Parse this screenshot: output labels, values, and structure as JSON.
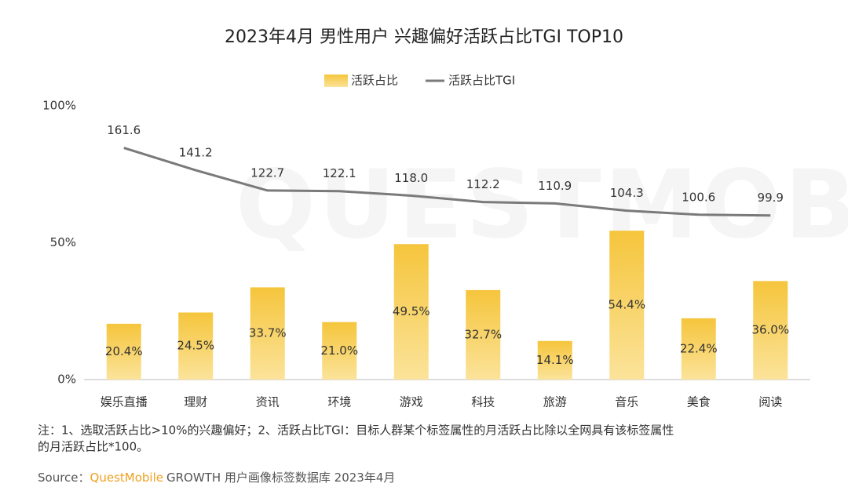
{
  "chart_data": {
    "type": "bar",
    "title": "2023年4月 男性用户 兴趣偏好活跃占比TGI TOP10",
    "watermark": "QUESTMOBILE",
    "categories": [
      "娱乐直播",
      "理财",
      "资讯",
      "环境",
      "游戏",
      "科技",
      "旅游",
      "音乐",
      "美食",
      "阅读"
    ],
    "series": [
      {
        "name": "活跃占比",
        "type": "bar",
        "color": "#f5c53c",
        "values": [
          20.4,
          24.5,
          33.7,
          21.0,
          49.5,
          32.7,
          14.1,
          54.4,
          22.4,
          36.0
        ],
        "value_labels": [
          "20.4%",
          "24.5%",
          "33.7%",
          "21.0%",
          "49.5%",
          "32.7%",
          "14.1%",
          "54.4%",
          "22.4%",
          "36.0%"
        ]
      },
      {
        "name": "活跃占比TGI",
        "type": "line",
        "axis": "y2",
        "color": "#7a7a7a",
        "values": [
          161.6,
          141.2,
          122.7,
          122.1,
          118.0,
          112.2,
          110.9,
          104.3,
          100.6,
          99.9
        ],
        "value_labels": [
          "161.6",
          "141.2",
          "122.7",
          "122.1",
          "118.0",
          "112.2",
          "110.9",
          "104.3",
          "100.6",
          "99.9"
        ]
      }
    ],
    "ylim": [
      0,
      100
    ],
    "yticks": [
      {
        "value": 0,
        "label": "0%"
      },
      {
        "value": 50,
        "label": "50%"
      },
      {
        "value": 100,
        "label": "100%"
      }
    ],
    "y2lim": [
      -50,
      200
    ],
    "legend": "top",
    "note": [
      "注：1、选取活跃占比>10%的兴趣偏好；2、活跃占比TGI：目标人群某个标签属性的月活跃占比除以全网具有该标签属性",
      "的月活跃占比*100。"
    ],
    "source": {
      "prefix": "Source：",
      "brand": "QuestMobile",
      "text": "GROWTH 用户画像标签数据库 2023年4月"
    }
  }
}
